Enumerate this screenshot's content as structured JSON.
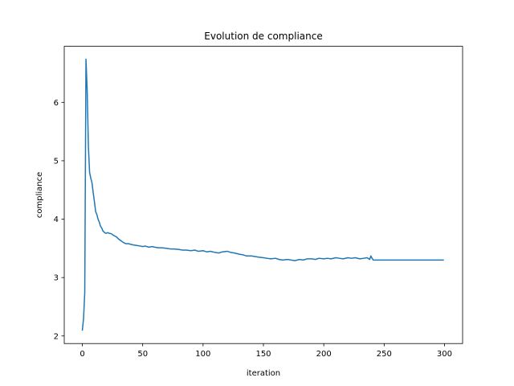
{
  "chart_data": {
    "type": "line",
    "title": "Evolution de compliance",
    "xlabel": "iteration",
    "ylabel": "compliance",
    "xlim": [
      -15,
      315
    ],
    "ylim": [
      1.87,
      6.96
    ],
    "xticks": [
      0,
      50,
      100,
      150,
      200,
      250,
      300
    ],
    "xtick_labels": [
      "0",
      "50",
      "100",
      "150",
      "200",
      "250",
      "300"
    ],
    "yticks": [
      2,
      3,
      4,
      5,
      6
    ],
    "ytick_labels": [
      "2",
      "3",
      "4",
      "5",
      "6"
    ],
    "grid": false,
    "legend": "none",
    "series": [
      {
        "name": "compliance",
        "color": "#1f77b4",
        "x": [
          0,
          1,
          2,
          3,
          4,
          5,
          6,
          7,
          8,
          9,
          10,
          11,
          12,
          13,
          14,
          15,
          16,
          17,
          18,
          19,
          20,
          21,
          22,
          24,
          26,
          28,
          30,
          32,
          34,
          36,
          38,
          40,
          42,
          45,
          48,
          50,
          52,
          55,
          58,
          60,
          63,
          66,
          70,
          73,
          76,
          80,
          83,
          86,
          90,
          93,
          96,
          100,
          103,
          106,
          110,
          113,
          116,
          120,
          123,
          126,
          130,
          133,
          136,
          140,
          143,
          146,
          150,
          153,
          156,
          160,
          163,
          166,
          170,
          173,
          176,
          180,
          183,
          186,
          190,
          193,
          196,
          200,
          203,
          206,
          210,
          213,
          216,
          220,
          223,
          226,
          230,
          233,
          236,
          238,
          239,
          240,
          241,
          242,
          245,
          250,
          260,
          270,
          280,
          290,
          299
        ],
        "y": [
          2.1,
          2.3,
          2.75,
          6.74,
          6.2,
          5.25,
          4.8,
          4.7,
          4.62,
          4.45,
          4.3,
          4.13,
          4.08,
          4.0,
          3.95,
          3.88,
          3.85,
          3.8,
          3.78,
          3.76,
          3.76,
          3.77,
          3.76,
          3.75,
          3.72,
          3.7,
          3.66,
          3.63,
          3.6,
          3.58,
          3.58,
          3.57,
          3.56,
          3.55,
          3.54,
          3.53,
          3.54,
          3.52,
          3.53,
          3.52,
          3.51,
          3.51,
          3.5,
          3.49,
          3.49,
          3.48,
          3.47,
          3.47,
          3.46,
          3.47,
          3.45,
          3.46,
          3.44,
          3.45,
          3.43,
          3.42,
          3.44,
          3.45,
          3.43,
          3.42,
          3.4,
          3.39,
          3.37,
          3.37,
          3.36,
          3.35,
          3.34,
          3.33,
          3.32,
          3.33,
          3.31,
          3.3,
          3.31,
          3.3,
          3.29,
          3.31,
          3.3,
          3.32,
          3.32,
          3.31,
          3.33,
          3.32,
          3.33,
          3.32,
          3.34,
          3.33,
          3.32,
          3.34,
          3.33,
          3.34,
          3.32,
          3.33,
          3.34,
          3.31,
          3.37,
          3.33,
          3.3,
          3.3,
          3.3,
          3.3,
          3.3,
          3.3,
          3.3,
          3.3,
          3.3
        ]
      }
    ]
  }
}
